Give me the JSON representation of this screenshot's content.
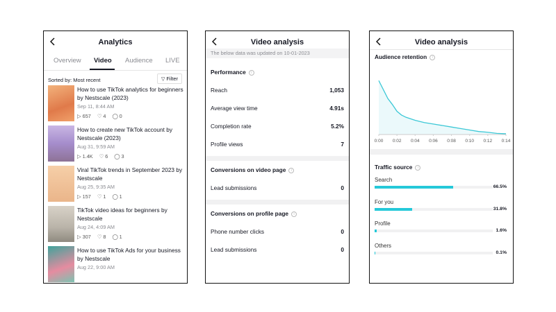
{
  "analytics": {
    "title": "Analytics",
    "tabs": [
      "Overview",
      "Video",
      "Audience",
      "LIVE"
    ],
    "active_tab": 1,
    "sort": "Sorted by: Most recent",
    "filter": "Filter",
    "videos": [
      {
        "title": "How to use TikTok analytics for beginners by Nestscale (2023)",
        "date": "Sep 11, 8:44 AM",
        "views": "657",
        "likes": "4",
        "comments": "0"
      },
      {
        "title": "How to create new TikTok account by Nestscale (2023)",
        "date": "Aug 31, 9:59 AM",
        "views": "1.4K",
        "likes": "6",
        "comments": "3"
      },
      {
        "title": "Viral TikTok trends in September 2023 by Nestscale",
        "date": "Aug 25, 9:35 AM",
        "views": "157",
        "likes": "1",
        "comments": "1"
      },
      {
        "title": "TikTok video ideas for beginners by Nestscale",
        "date": "Aug 24, 4:09 AM",
        "views": "307",
        "likes": "8",
        "comments": "1"
      },
      {
        "title": "How to use TikTok Ads for your business by Nestscale",
        "date": "Aug 22, 9:00 AM"
      }
    ]
  },
  "video_analysis": {
    "title": "Video analysis",
    "note": "The below data was updated on 10-01-2023",
    "sections": [
      {
        "heading": "Performance",
        "rows": [
          {
            "label": "Reach",
            "value": "1,053"
          },
          {
            "label": "Average view time",
            "value": "4.91s"
          },
          {
            "label": "Completion rate",
            "value": "5.2%"
          },
          {
            "label": "Profile views",
            "value": "7"
          }
        ]
      },
      {
        "heading": "Conversions on video page",
        "rows": [
          {
            "label": "Lead submissions",
            "value": "0"
          }
        ]
      },
      {
        "heading": "Conversions on profile page",
        "rows": [
          {
            "label": "Phone number clicks",
            "value": "0"
          },
          {
            "label": "Lead submissions",
            "value": "0"
          }
        ]
      }
    ]
  },
  "retention_screen": {
    "title": "Video analysis"
  },
  "chart_data": [
    {
      "type": "line",
      "title": "Audience retention",
      "x": [
        0,
        0.5,
        1,
        1.5,
        2,
        2.5,
        3,
        4,
        5,
        6,
        7,
        8,
        9,
        10,
        11,
        12,
        13,
        14
      ],
      "values": [
        72,
        60,
        48,
        40,
        31,
        26,
        23,
        19,
        16,
        14,
        12,
        10,
        8,
        6,
        4,
        3,
        1.5,
        1
      ],
      "color": "#3cc8d6",
      "xlim": [
        0,
        14
      ],
      "ylim": [
        0,
        100
      ],
      "xticks": [
        {
          "value": 0,
          "label": "0:00"
        },
        {
          "value": 2,
          "label": "0:02"
        },
        {
          "value": 4,
          "label": "0:04"
        },
        {
          "value": 6,
          "label": "0:06"
        },
        {
          "value": 8,
          "label": "0:08"
        },
        {
          "value": 10,
          "label": "0:10"
        },
        {
          "value": 12,
          "label": "0:12"
        },
        {
          "value": 14,
          "label": "0:14"
        }
      ]
    },
    {
      "type": "bar",
      "title": "Traffic source",
      "categories": [
        "Search",
        "For you",
        "Profile",
        "Others"
      ],
      "values": [
        66.5,
        31.8,
        1.6,
        0.1
      ],
      "value_labels": [
        "66.5%",
        "31.8%",
        "1.6%",
        "0.1%"
      ],
      "color": "#25c9d9",
      "xlim": [
        0,
        100
      ]
    }
  ]
}
